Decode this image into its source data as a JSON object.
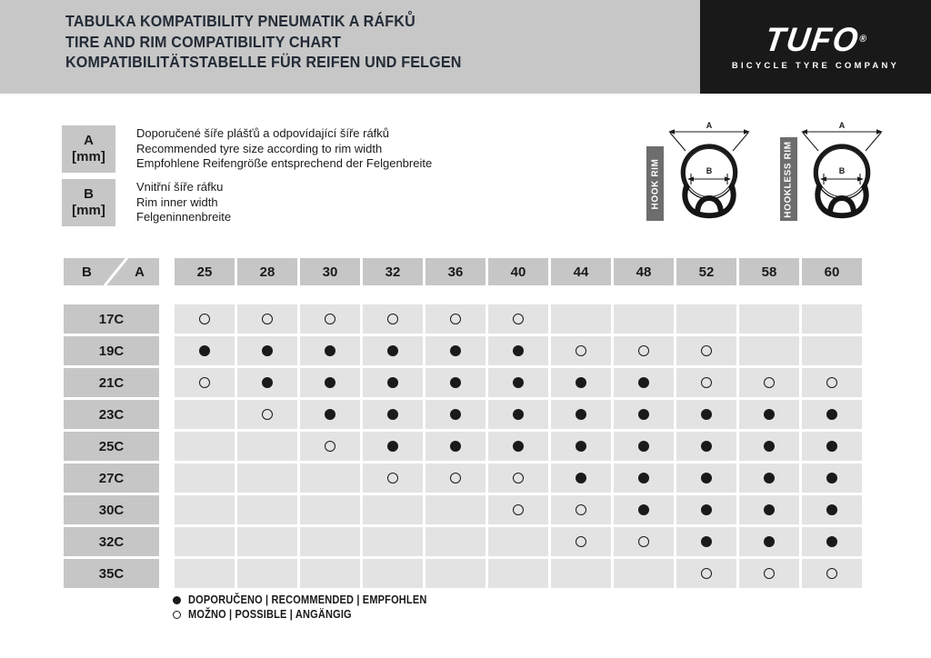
{
  "colors": {
    "header_bar": "#c7c7c7",
    "logo_box": "#191919",
    "title_text": "#232b36",
    "header_cell": "#c6c6c6",
    "data_cell": "#e3e3e3",
    "rim_label_box": "#6d6d6d",
    "ink": "#1a1a1a",
    "white": "#ffffff"
  },
  "header": {
    "title_lines": [
      "TABULKA KOMPATIBILITY PNEUMATIK A RÁFKŮ",
      "TIRE AND RIM COMPATIBILITY CHART",
      "KOMPATIBILITÄTSTABELLE FÜR REIFEN UND FELGEN"
    ],
    "logo": {
      "brand": "TUFO",
      "registered": "®",
      "tagline": "BICYCLE TYRE COMPANY"
    }
  },
  "key": {
    "a": {
      "label": "A",
      "unit": "[mm]",
      "lines": [
        "Doporučené šíře plášťů a odpovídající šíře ráfků",
        "Recommended tyre size according to rim width",
        "Empfohlene Reifengröße entsprechend der Felgenbreite"
      ]
    },
    "b": {
      "label": "B",
      "unit": "[mm]",
      "lines": [
        "Vnitřní šíře ráfku",
        "Rim inner width",
        "Felgeninnenbreite"
      ]
    }
  },
  "diagrams": [
    {
      "label": "HOOK RIM",
      "dim_a": "A",
      "dim_b": "B"
    },
    {
      "label": "HOOKLESS RIM",
      "dim_a": "A",
      "dim_b": "B"
    }
  ],
  "chart_data": {
    "type": "table",
    "title": "Tire and rim compatibility chart",
    "corner": {
      "row_axis": "B",
      "col_axis": "A"
    },
    "columns": [
      "25",
      "28",
      "30",
      "32",
      "36",
      "40",
      "44",
      "48",
      "52",
      "58",
      "60"
    ],
    "rows": [
      {
        "label": "17C",
        "cells": [
          "P",
          "P",
          "P",
          "P",
          "P",
          "P",
          "",
          "",
          "",
          "",
          ""
        ]
      },
      {
        "label": "19C",
        "cells": [
          "R",
          "R",
          "R",
          "R",
          "R",
          "R",
          "P",
          "P",
          "P",
          "",
          ""
        ]
      },
      {
        "label": "21C",
        "cells": [
          "P",
          "R",
          "R",
          "R",
          "R",
          "R",
          "R",
          "R",
          "P",
          "P",
          "P"
        ]
      },
      {
        "label": "23C",
        "cells": [
          "",
          "P",
          "R",
          "R",
          "R",
          "R",
          "R",
          "R",
          "R",
          "R",
          "R"
        ]
      },
      {
        "label": "25C",
        "cells": [
          "",
          "",
          "P",
          "R",
          "R",
          "R",
          "R",
          "R",
          "R",
          "R",
          "R"
        ]
      },
      {
        "label": "27C",
        "cells": [
          "",
          "",
          "",
          "P",
          "P",
          "P",
          "R",
          "R",
          "R",
          "R",
          "R"
        ]
      },
      {
        "label": "30C",
        "cells": [
          "",
          "",
          "",
          "",
          "",
          "P",
          "P",
          "R",
          "R",
          "R",
          "R"
        ]
      },
      {
        "label": "32C",
        "cells": [
          "",
          "",
          "",
          "",
          "",
          "",
          "P",
          "P",
          "R",
          "R",
          "R"
        ]
      },
      {
        "label": "35C",
        "cells": [
          "",
          "",
          "",
          "",
          "",
          "",
          "",
          "",
          "P",
          "P",
          "P"
        ]
      }
    ],
    "cell_value_meaning": {
      "R": "recommended (filled circle)",
      "P": "possible (open circle)"
    }
  },
  "legend_bottom": [
    {
      "symbol": "filled-circle",
      "text": "DOPORUČENO | RECOMMENDED | EMPFOHLEN"
    },
    {
      "symbol": "open-circle",
      "text": "MOŽNO | POSSIBLE | ANGÄNGIG"
    }
  ]
}
